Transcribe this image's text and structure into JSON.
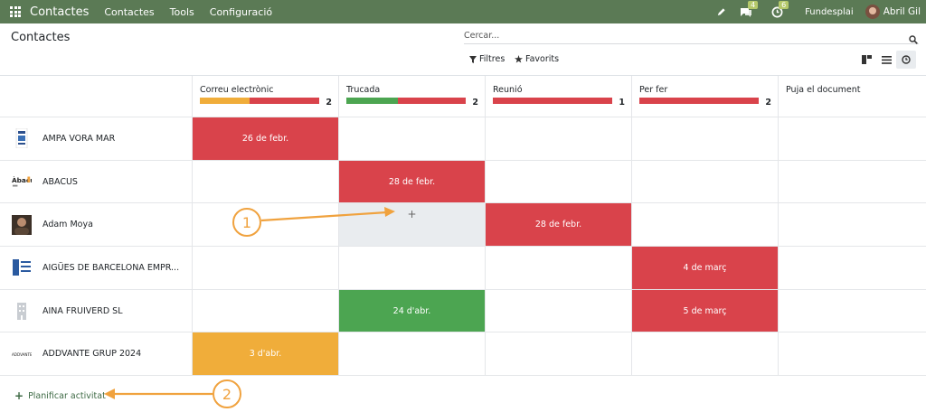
{
  "navbar": {
    "brand": "Contactes",
    "menus": [
      "Contactes",
      "Tools",
      "Configuració"
    ],
    "messages_badge": "4",
    "activities_badge": "6",
    "company": "Fundesplai",
    "user": "Abril Gil",
    "color": "#5b7a55"
  },
  "control_panel": {
    "title": "Contactes",
    "search_placeholder": "Cercar...",
    "filters_label": "Filtres",
    "favorites_label": "Favorits"
  },
  "columns": [
    {
      "label": "Correu electrònic",
      "count": "2",
      "bar": [
        {
          "color": "#f0ad3a",
          "fraction": 0.42
        },
        {
          "color": "#d9434b",
          "fraction": 0.58
        }
      ]
    },
    {
      "label": "Trucada",
      "count": "2",
      "bar": [
        {
          "color": "#4ca551",
          "fraction": 0.43
        },
        {
          "color": "#d9434b",
          "fraction": 0.57
        }
      ]
    },
    {
      "label": "Reunió",
      "count": "1",
      "bar": [
        {
          "color": "#d9434b",
          "fraction": 1
        }
      ]
    },
    {
      "label": "Per fer",
      "count": "2",
      "bar": [
        {
          "color": "#d9434b",
          "fraction": 1
        }
      ]
    },
    {
      "label": "Puja el document",
      "count": "",
      "bar": []
    }
  ],
  "rows": [
    {
      "name": "AMPA VORA MAR",
      "avatar": "logo-ampa",
      "cells": [
        {
          "text": "26 de febr.",
          "color": "#d9434b"
        },
        null,
        null,
        null,
        null
      ]
    },
    {
      "name": "ABACUS",
      "avatar": "logo-abacus",
      "cells": [
        null,
        {
          "text": "28 de febr.",
          "color": "#d9434b"
        },
        null,
        null,
        null
      ]
    },
    {
      "name": "Adam Moya",
      "avatar": "photo",
      "cells": [
        null,
        {
          "hover": "+"
        },
        {
          "text": "28 de febr.",
          "color": "#d9434b"
        },
        null,
        null
      ]
    },
    {
      "name": "AIGÜES DE BARCELONA EMPR...",
      "avatar": "logo-aigues",
      "cells": [
        null,
        null,
        null,
        {
          "text": "4 de març",
          "color": "#d9434b"
        },
        null
      ]
    },
    {
      "name": "AINA FRUIVERD SL",
      "avatar": "building-icon",
      "cells": [
        null,
        {
          "text": "24 d'abr.",
          "color": "#4ca551"
        },
        null,
        {
          "text": "5 de març",
          "color": "#d9434b"
        },
        null
      ]
    },
    {
      "name": "ADDVANTE GRUP 2024",
      "avatar": "logo-addvante",
      "cells": [
        {
          "text": "3 d'abr.",
          "color": "#f0ad3a"
        },
        null,
        null,
        null,
        null
      ]
    }
  ],
  "footer": {
    "plan_label": "Planificar activitat"
  },
  "callouts": [
    "1",
    "2"
  ]
}
